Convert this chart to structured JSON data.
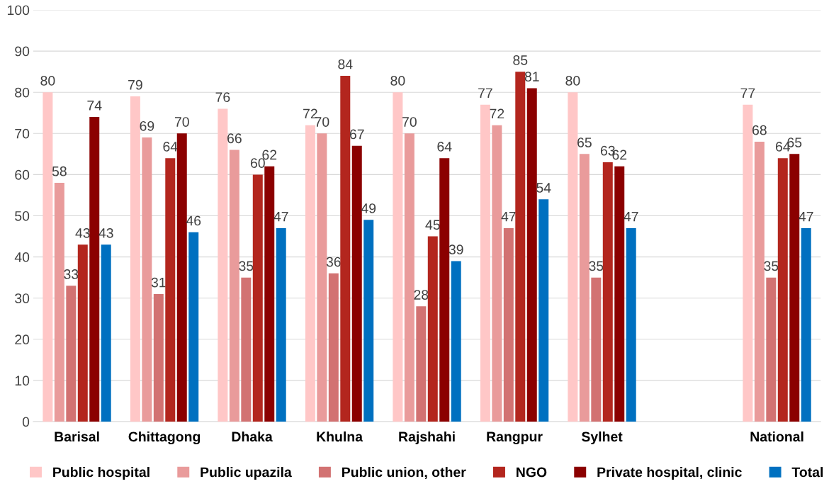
{
  "chart_data": {
    "type": "bar",
    "categories": [
      "Barisal",
      "Chittagong",
      "Dhaka",
      "Khulna",
      "Rajshahi",
      "Rangpur",
      "Sylhet",
      null,
      "National"
    ],
    "series": [
      {
        "name": "Public hospital",
        "color": "#ffc7c7",
        "values": [
          80,
          79,
          76,
          72,
          80,
          77,
          80,
          null,
          77
        ]
      },
      {
        "name": "Public upazila",
        "color": "#e99b9b",
        "values": [
          58,
          69,
          66,
          70,
          70,
          72,
          65,
          null,
          68
        ]
      },
      {
        "name": "Public union, other",
        "color": "#d27272",
        "values": [
          33,
          31,
          35,
          36,
          28,
          47,
          35,
          null,
          35
        ]
      },
      {
        "name": "NGO",
        "color": "#b3261e",
        "values": [
          43,
          64,
          60,
          84,
          45,
          85,
          63,
          null,
          64
        ]
      },
      {
        "name": "Private hospital, clinic",
        "color": "#8b0000",
        "values": [
          74,
          70,
          62,
          67,
          64,
          81,
          62,
          null,
          65
        ]
      },
      {
        "name": "Total",
        "color": "#0070c0",
        "values": [
          43,
          46,
          47,
          49,
          39,
          54,
          47,
          null,
          47
        ]
      }
    ],
    "ylim": [
      0,
      100
    ],
    "yticks": [
      0,
      10,
      20,
      30,
      40,
      50,
      60,
      70,
      80,
      90,
      100
    ],
    "grid": "y",
    "legend": "bottom",
    "data_labels": true
  }
}
